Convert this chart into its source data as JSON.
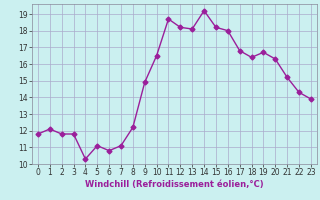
{
  "x": [
    0,
    1,
    2,
    3,
    4,
    5,
    6,
    7,
    8,
    9,
    10,
    11,
    12,
    13,
    14,
    15,
    16,
    17,
    18,
    19,
    20,
    21,
    22,
    23
  ],
  "y": [
    11.8,
    12.1,
    11.8,
    11.8,
    10.3,
    11.1,
    10.8,
    11.1,
    12.2,
    14.9,
    16.5,
    18.7,
    18.2,
    18.1,
    19.2,
    18.2,
    18.0,
    16.8,
    16.4,
    16.7,
    16.3,
    15.2,
    14.3,
    13.9
  ],
  "line_color": "#9B1F9B",
  "marker": "D",
  "markersize": 2.5,
  "linewidth": 1.0,
  "bg_color": "#CBF0F0",
  "grid_color": "#AAAACC",
  "xlabel": "Windchill (Refroidissement éolien,°C)",
  "xlabel_fontsize": 6.0,
  "ylabel_ticks": [
    10,
    11,
    12,
    13,
    14,
    15,
    16,
    17,
    18,
    19
  ],
  "xlim": [
    -0.5,
    23.5
  ],
  "ylim": [
    10,
    19.6
  ],
  "tick_fontsize": 5.5,
  "spine_color": "#888899"
}
